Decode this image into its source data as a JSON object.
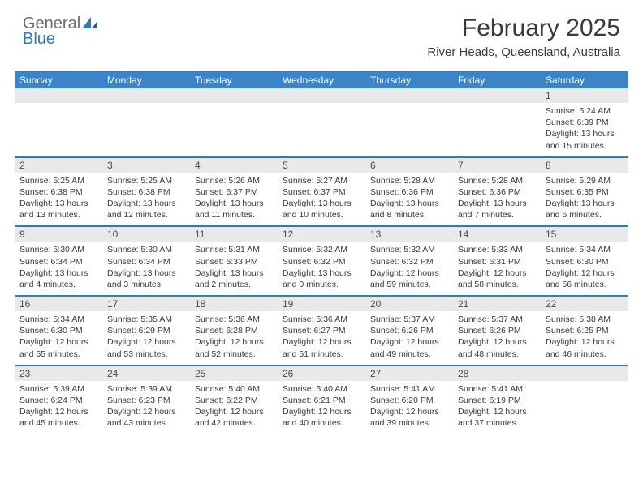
{
  "brand": {
    "part1": "General",
    "part2": "Blue"
  },
  "title": "February 2025",
  "location": "River Heads, Queensland, Australia",
  "colors": {
    "brand_blue": "#2a7cc4",
    "header_bg": "#3a85c9",
    "daynum_bg": "#e9e9e9",
    "text": "#3a3a3a",
    "logo_gray": "#6b6b6b"
  },
  "weekdays": [
    "Sunday",
    "Monday",
    "Tuesday",
    "Wednesday",
    "Thursday",
    "Friday",
    "Saturday"
  ],
  "weeks": [
    [
      {
        "n": "",
        "sunrise": "",
        "sunset": "",
        "daylight": ""
      },
      {
        "n": "",
        "sunrise": "",
        "sunset": "",
        "daylight": ""
      },
      {
        "n": "",
        "sunrise": "",
        "sunset": "",
        "daylight": ""
      },
      {
        "n": "",
        "sunrise": "",
        "sunset": "",
        "daylight": ""
      },
      {
        "n": "",
        "sunrise": "",
        "sunset": "",
        "daylight": ""
      },
      {
        "n": "",
        "sunrise": "",
        "sunset": "",
        "daylight": ""
      },
      {
        "n": "1",
        "sunrise": "Sunrise: 5:24 AM",
        "sunset": "Sunset: 6:39 PM",
        "daylight": "Daylight: 13 hours and 15 minutes."
      }
    ],
    [
      {
        "n": "2",
        "sunrise": "Sunrise: 5:25 AM",
        "sunset": "Sunset: 6:38 PM",
        "daylight": "Daylight: 13 hours and 13 minutes."
      },
      {
        "n": "3",
        "sunrise": "Sunrise: 5:25 AM",
        "sunset": "Sunset: 6:38 PM",
        "daylight": "Daylight: 13 hours and 12 minutes."
      },
      {
        "n": "4",
        "sunrise": "Sunrise: 5:26 AM",
        "sunset": "Sunset: 6:37 PM",
        "daylight": "Daylight: 13 hours and 11 minutes."
      },
      {
        "n": "5",
        "sunrise": "Sunrise: 5:27 AM",
        "sunset": "Sunset: 6:37 PM",
        "daylight": "Daylight: 13 hours and 10 minutes."
      },
      {
        "n": "6",
        "sunrise": "Sunrise: 5:28 AM",
        "sunset": "Sunset: 6:36 PM",
        "daylight": "Daylight: 13 hours and 8 minutes."
      },
      {
        "n": "7",
        "sunrise": "Sunrise: 5:28 AM",
        "sunset": "Sunset: 6:36 PM",
        "daylight": "Daylight: 13 hours and 7 minutes."
      },
      {
        "n": "8",
        "sunrise": "Sunrise: 5:29 AM",
        "sunset": "Sunset: 6:35 PM",
        "daylight": "Daylight: 13 hours and 6 minutes."
      }
    ],
    [
      {
        "n": "9",
        "sunrise": "Sunrise: 5:30 AM",
        "sunset": "Sunset: 6:34 PM",
        "daylight": "Daylight: 13 hours and 4 minutes."
      },
      {
        "n": "10",
        "sunrise": "Sunrise: 5:30 AM",
        "sunset": "Sunset: 6:34 PM",
        "daylight": "Daylight: 13 hours and 3 minutes."
      },
      {
        "n": "11",
        "sunrise": "Sunrise: 5:31 AM",
        "sunset": "Sunset: 6:33 PM",
        "daylight": "Daylight: 13 hours and 2 minutes."
      },
      {
        "n": "12",
        "sunrise": "Sunrise: 5:32 AM",
        "sunset": "Sunset: 6:32 PM",
        "daylight": "Daylight: 13 hours and 0 minutes."
      },
      {
        "n": "13",
        "sunrise": "Sunrise: 5:32 AM",
        "sunset": "Sunset: 6:32 PM",
        "daylight": "Daylight: 12 hours and 59 minutes."
      },
      {
        "n": "14",
        "sunrise": "Sunrise: 5:33 AM",
        "sunset": "Sunset: 6:31 PM",
        "daylight": "Daylight: 12 hours and 58 minutes."
      },
      {
        "n": "15",
        "sunrise": "Sunrise: 5:34 AM",
        "sunset": "Sunset: 6:30 PM",
        "daylight": "Daylight: 12 hours and 56 minutes."
      }
    ],
    [
      {
        "n": "16",
        "sunrise": "Sunrise: 5:34 AM",
        "sunset": "Sunset: 6:30 PM",
        "daylight": "Daylight: 12 hours and 55 minutes."
      },
      {
        "n": "17",
        "sunrise": "Sunrise: 5:35 AM",
        "sunset": "Sunset: 6:29 PM",
        "daylight": "Daylight: 12 hours and 53 minutes."
      },
      {
        "n": "18",
        "sunrise": "Sunrise: 5:36 AM",
        "sunset": "Sunset: 6:28 PM",
        "daylight": "Daylight: 12 hours and 52 minutes."
      },
      {
        "n": "19",
        "sunrise": "Sunrise: 5:36 AM",
        "sunset": "Sunset: 6:27 PM",
        "daylight": "Daylight: 12 hours and 51 minutes."
      },
      {
        "n": "20",
        "sunrise": "Sunrise: 5:37 AM",
        "sunset": "Sunset: 6:26 PM",
        "daylight": "Daylight: 12 hours and 49 minutes."
      },
      {
        "n": "21",
        "sunrise": "Sunrise: 5:37 AM",
        "sunset": "Sunset: 6:26 PM",
        "daylight": "Daylight: 12 hours and 48 minutes."
      },
      {
        "n": "22",
        "sunrise": "Sunrise: 5:38 AM",
        "sunset": "Sunset: 6:25 PM",
        "daylight": "Daylight: 12 hours and 46 minutes."
      }
    ],
    [
      {
        "n": "23",
        "sunrise": "Sunrise: 5:39 AM",
        "sunset": "Sunset: 6:24 PM",
        "daylight": "Daylight: 12 hours and 45 minutes."
      },
      {
        "n": "24",
        "sunrise": "Sunrise: 5:39 AM",
        "sunset": "Sunset: 6:23 PM",
        "daylight": "Daylight: 12 hours and 43 minutes."
      },
      {
        "n": "25",
        "sunrise": "Sunrise: 5:40 AM",
        "sunset": "Sunset: 6:22 PM",
        "daylight": "Daylight: 12 hours and 42 minutes."
      },
      {
        "n": "26",
        "sunrise": "Sunrise: 5:40 AM",
        "sunset": "Sunset: 6:21 PM",
        "daylight": "Daylight: 12 hours and 40 minutes."
      },
      {
        "n": "27",
        "sunrise": "Sunrise: 5:41 AM",
        "sunset": "Sunset: 6:20 PM",
        "daylight": "Daylight: 12 hours and 39 minutes."
      },
      {
        "n": "28",
        "sunrise": "Sunrise: 5:41 AM",
        "sunset": "Sunset: 6:19 PM",
        "daylight": "Daylight: 12 hours and 37 minutes."
      },
      {
        "n": "",
        "sunrise": "",
        "sunset": "",
        "daylight": ""
      }
    ]
  ]
}
